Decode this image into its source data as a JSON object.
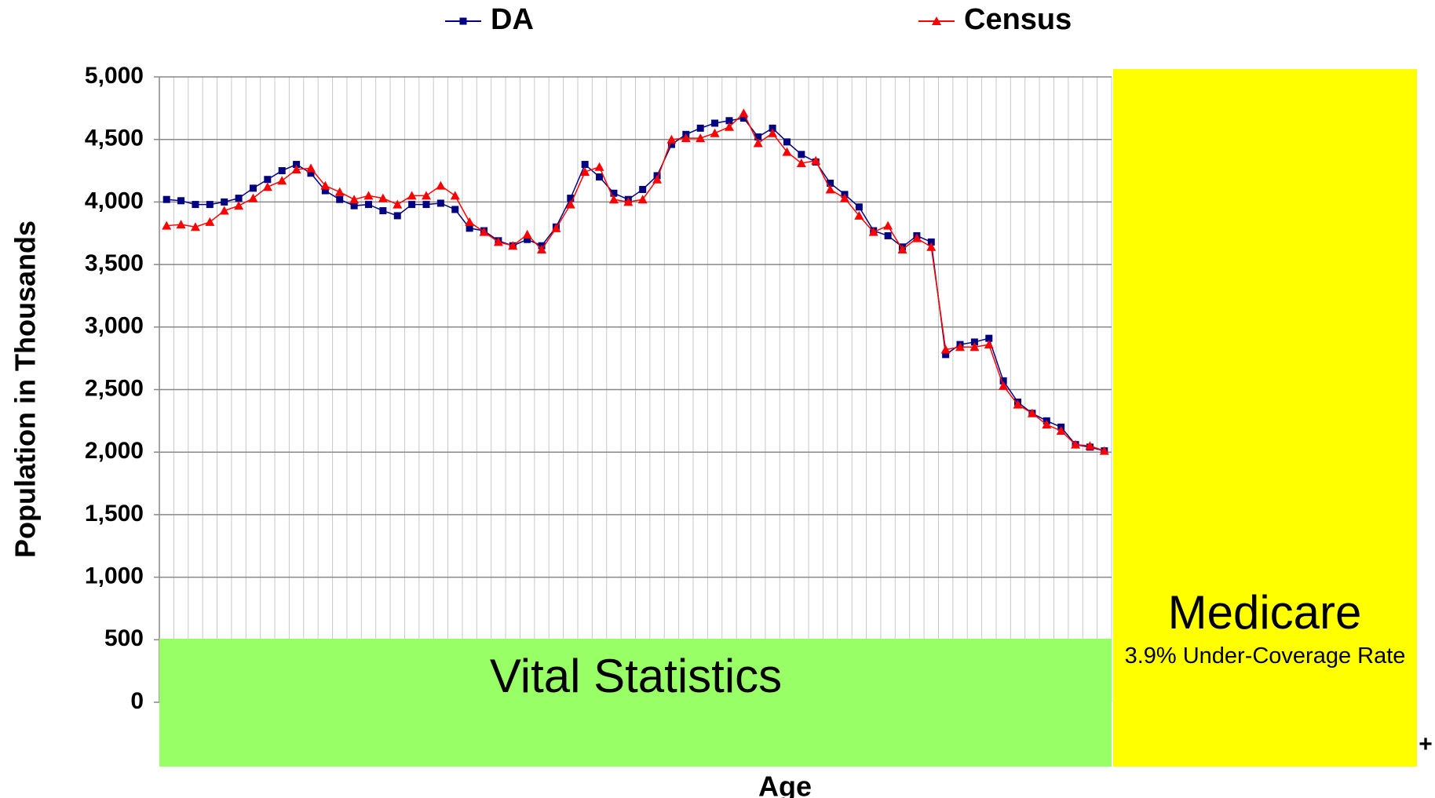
{
  "chart_data": {
    "type": "line",
    "y_label": "Population in Thousands",
    "x_label": "Age",
    "categories": [
      null,
      null,
      null,
      null,
      null,
      null,
      null,
      null,
      null,
      null,
      null,
      null,
      null,
      null,
      null,
      null,
      null,
      null,
      null,
      null,
      null,
      null,
      null,
      null,
      null,
      null,
      null,
      null,
      null,
      null,
      null,
      null,
      null,
      null,
      null,
      null,
      null,
      null,
      null,
      null,
      null,
      null,
      null,
      null,
      null,
      null,
      null,
      null,
      null,
      null,
      null,
      null,
      null,
      null,
      null,
      null,
      null,
      null,
      null,
      null,
      null,
      null,
      null,
      null,
      null,
      null
    ],
    "series": [
      {
        "name": "DA",
        "color": "#000080",
        "marker": "square",
        "values": [
          4020,
          4010,
          3980,
          3980,
          4000,
          4030,
          4110,
          4180,
          4250,
          4300,
          4230,
          4090,
          4020,
          3970,
          3980,
          3930,
          3890,
          3980,
          3980,
          3990,
          3940,
          3790,
          3770,
          3690,
          3650,
          3700,
          3650,
          3800,
          4030,
          4300,
          4200,
          4070,
          4020,
          4100,
          4210,
          4460,
          4540,
          4590,
          4630,
          4650,
          4670,
          4520,
          4590,
          4480,
          4380,
          4320,
          4150,
          4060,
          3960,
          3770,
          3730,
          3640,
          3730,
          3680,
          2780,
          2860,
          2880,
          2910,
          2570,
          2400,
          2310,
          2250,
          2200,
          2060,
          2040,
          2010
        ]
      },
      {
        "name": "Census",
        "color": "#ff0000",
        "marker": "triangle",
        "values": [
          3810,
          3820,
          3800,
          3840,
          3930,
          3970,
          4030,
          4120,
          4170,
          4260,
          4270,
          4130,
          4080,
          4020,
          4050,
          4030,
          3980,
          4050,
          4050,
          4130,
          4050,
          3840,
          3760,
          3680,
          3650,
          3740,
          3620,
          3790,
          3980,
          4240,
          4280,
          4020,
          4000,
          4020,
          4180,
          4500,
          4510,
          4510,
          4550,
          4600,
          4710,
          4470,
          4550,
          4400,
          4310,
          4330,
          4100,
          4030,
          3890,
          3760,
          3810,
          3620,
          3710,
          3640,
          2820,
          2840,
          2840,
          2860,
          2530,
          2380,
          2310,
          2220,
          2170,
          2060,
          2050,
          2010
        ]
      }
    ],
    "ylim": [
      0,
      5000
    ],
    "yticks": [
      0,
      500,
      {
        "value": 1000,
        "label": "1,000"
      },
      {
        "value": 1500,
        "label": "1,500"
      },
      {
        "value": 2000,
        "label": "2,000"
      },
      {
        "value": 2500,
        "label": "2,500"
      },
      {
        "value": 3000,
        "label": "3,000"
      },
      {
        "value": 3500,
        "label": "3,500"
      },
      {
        "value": 4000,
        "label": "4,000"
      },
      {
        "value": 4500,
        "label": "4,500"
      },
      {
        "value": 5000,
        "label": "5,000"
      }
    ],
    "grid": true,
    "legend": "top",
    "annotations": [
      "Vital Statistics",
      "Medicare",
      "3.9% Under-Coverage Rate",
      "+"
    ]
  }
}
